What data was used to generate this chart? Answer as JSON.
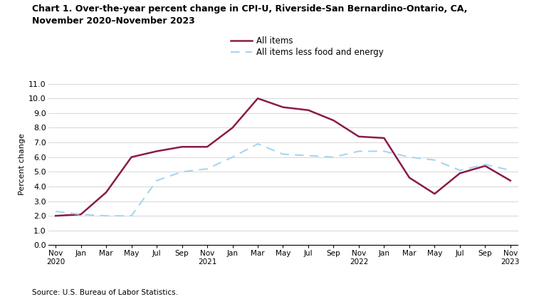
{
  "title_line1": "Chart 1. Over-the-year percent change in CPI-U, Riverside-San Bernardino-Ontario, CA,",
  "title_line2": "November 2020–November 2023",
  "ylabel": "Percent change",
  "source": "Source: U.S. Bureau of Labor Statistics.",
  "x_tick_labels": [
    "Nov\n2020",
    "Jan",
    "Mar",
    "May",
    "Jul",
    "Sep",
    "Nov\n2021",
    "Jan",
    "Mar",
    "May",
    "Jul",
    "Sep",
    "Nov\n2022",
    "Jan",
    "Mar",
    "May",
    "Jul",
    "Sep",
    "Nov\n2023"
  ],
  "ylim": [
    0.0,
    11.0
  ],
  "yticks": [
    0.0,
    1.0,
    2.0,
    3.0,
    4.0,
    5.0,
    6.0,
    7.0,
    8.0,
    9.0,
    10.0,
    11.0
  ],
  "all_items": [
    2.0,
    2.1,
    3.6,
    6.0,
    6.4,
    6.7,
    6.7,
    8.0,
    10.0,
    9.4,
    9.2,
    8.5,
    7.4,
    7.3,
    4.6,
    3.5,
    4.9,
    5.4,
    4.4
  ],
  "all_items_less": [
    2.3,
    2.1,
    2.0,
    2.0,
    4.4,
    5.0,
    5.2,
    6.0,
    6.9,
    6.2,
    6.1,
    6.0,
    6.4,
    6.4,
    6.0,
    5.8,
    5.1,
    5.5,
    5.1
  ],
  "all_items_color": "#8b1a4a",
  "all_items_less_color": "#a8d4f0",
  "legend_label_1": "All items",
  "legend_label_2": "All items less food and energy",
  "fig_width": 7.5,
  "fig_height": 4.2,
  "dpi": 100
}
